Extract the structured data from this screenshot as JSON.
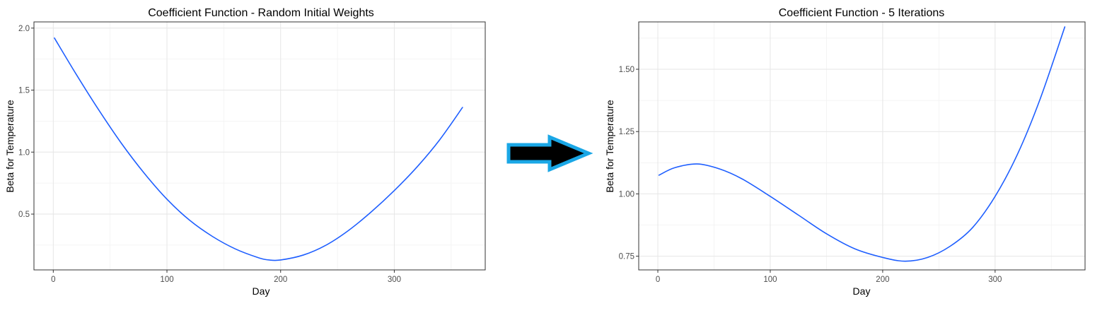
{
  "chart_data": [
    {
      "type": "line",
      "title": "Coefficient Function - Random Initial Weights",
      "xlabel": "Day",
      "ylabel": "Beta for Temperature",
      "xlim": [
        -17,
        380
      ],
      "ylim": [
        0.05,
        2.05
      ],
      "x_ticks": [
        0,
        100,
        200,
        300
      ],
      "x_tick_labels": [
        "0",
        "100",
        "200",
        "300"
      ],
      "y_ticks": [
        0.5,
        1.0,
        1.5,
        2.0
      ],
      "y_tick_labels": [
        "0.5",
        "1.0",
        "1.5",
        "2.0"
      ],
      "grid": true,
      "series": [
        {
          "color": "#1f5fff",
          "x": [
            1,
            20,
            40,
            60,
            80,
            100,
            120,
            140,
            160,
            180,
            190,
            200,
            220,
            240,
            260,
            280,
            300,
            320,
            340,
            360
          ],
          "y": [
            1.92,
            1.63,
            1.34,
            1.07,
            0.83,
            0.62,
            0.45,
            0.32,
            0.22,
            0.15,
            0.13,
            0.13,
            0.17,
            0.25,
            0.37,
            0.52,
            0.69,
            0.88,
            1.1,
            1.36
          ]
        }
      ]
    },
    {
      "type": "line",
      "title": "Coefficient Function - 5 Iterations",
      "xlabel": "Day",
      "ylabel": "Beta for Temperature",
      "xlim": [
        -17,
        380
      ],
      "ylim": [
        0.695,
        1.69
      ],
      "x_ticks": [
        0,
        100,
        200,
        300
      ],
      "x_tick_labels": [
        "0",
        "100",
        "200",
        "300"
      ],
      "y_ticks": [
        0.75,
        1.0,
        1.25,
        1.5
      ],
      "y_tick_labels": [
        "0.75",
        "1.00",
        "1.25",
        "1.50"
      ],
      "grid": true,
      "series": [
        {
          "color": "#1f5fff",
          "x": [
            1,
            15,
            35,
            55,
            75,
            100,
            125,
            150,
            175,
            200,
            220,
            240,
            260,
            280,
            300,
            320,
            340,
            362
          ],
          "y": [
            1.075,
            1.105,
            1.12,
            1.1,
            1.06,
            0.99,
            0.915,
            0.84,
            0.78,
            0.745,
            0.73,
            0.745,
            0.79,
            0.865,
            0.99,
            1.16,
            1.38,
            1.67
          ]
        }
      ]
    }
  ],
  "arrow": {
    "fill": "#000000",
    "outline": "#1aa7e6"
  }
}
